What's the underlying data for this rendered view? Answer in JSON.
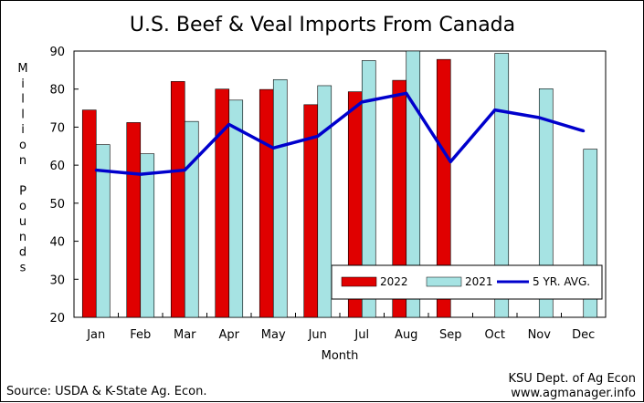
{
  "chart_data": {
    "type": "bar",
    "title": "U.S. Beef & Veal Imports From Canada",
    "xlabel": "Month",
    "ylabel": "Million Pounds",
    "ylim": [
      20,
      90
    ],
    "yticks": [
      20,
      30,
      40,
      50,
      60,
      70,
      80,
      90
    ],
    "categories": [
      "Jan",
      "Feb",
      "Mar",
      "Apr",
      "May",
      "Jun",
      "Jul",
      "Aug",
      "Sep",
      "Oct",
      "Nov",
      "Dec"
    ],
    "series": [
      {
        "name": "2022",
        "kind": "bar",
        "color": "#e00000",
        "values": [
          74.5,
          71.2,
          82.0,
          80.0,
          79.9,
          75.9,
          79.3,
          82.3,
          87.8,
          null,
          null,
          null
        ]
      },
      {
        "name": "2021",
        "kind": "bar",
        "color": "#a6e3e3",
        "values": [
          65.4,
          63.0,
          71.5,
          77.1,
          82.5,
          80.9,
          87.5,
          90.0,
          null,
          89.4,
          80.1,
          64.2
        ]
      },
      {
        "name": "5 YR. AVG.",
        "kind": "line",
        "color": "#0000cc",
        "values": [
          58.7,
          57.6,
          58.7,
          70.7,
          64.5,
          67.6,
          76.6,
          78.9,
          60.9,
          74.5,
          72.5,
          69.0
        ]
      }
    ],
    "grid": false,
    "legend_position": "bottom-right"
  },
  "footer": {
    "source": "Source:  USDA & K-State Ag. Econ.",
    "credit_line1": "KSU Dept. of Ag Econ",
    "credit_line2": "www.agmanager.info"
  }
}
